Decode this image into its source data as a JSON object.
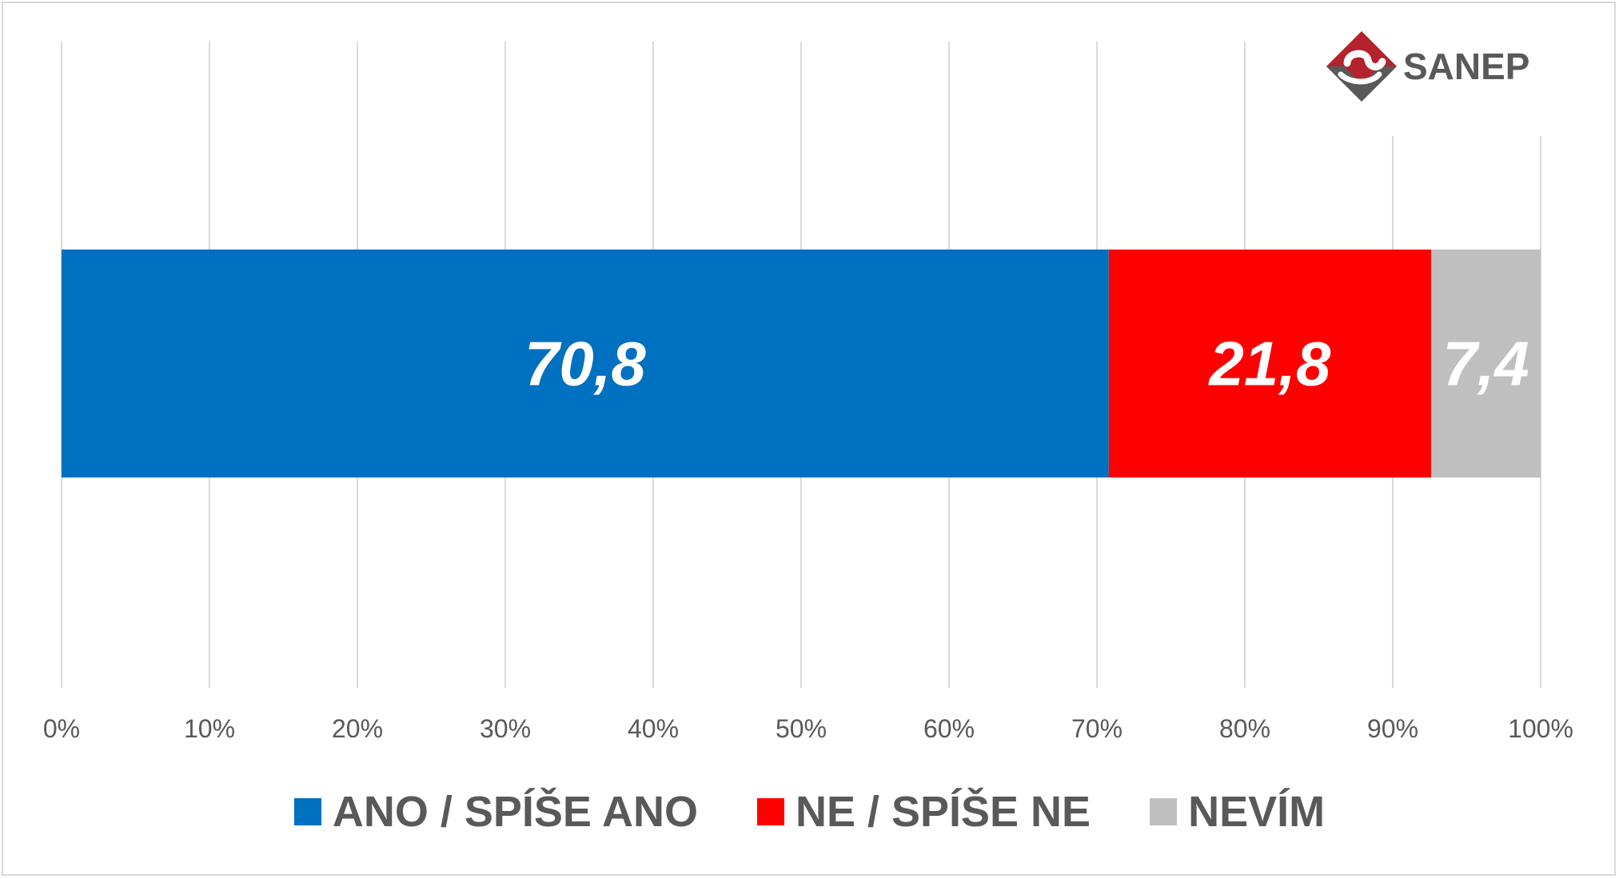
{
  "logo": {
    "text": "SANEP",
    "colors": {
      "primary": "#b3222d",
      "secondary": "#595959"
    }
  },
  "chart_data": {
    "type": "bar",
    "orientation": "horizontal",
    "stacked": true,
    "categories": [
      ""
    ],
    "series": [
      {
        "name": "ANO / SPÍŠE ANO",
        "values": [
          70.8
        ],
        "label": "70,8",
        "color": "#0070c0"
      },
      {
        "name": "NE / SPÍŠE NE",
        "values": [
          21.8
        ],
        "label": "21,8",
        "color": "#ff0000"
      },
      {
        "name": "NEVÍM",
        "values": [
          7.4
        ],
        "label": "7,4",
        "color": "#bfbfbf"
      }
    ],
    "xlim": [
      0,
      100
    ],
    "xticks": [
      "0%",
      "10%",
      "20%",
      "30%",
      "40%",
      "50%",
      "60%",
      "70%",
      "80%",
      "90%",
      "100%"
    ],
    "grid": true,
    "legend": "bottom",
    "title": "",
    "xlabel": "",
    "ylabel": ""
  }
}
